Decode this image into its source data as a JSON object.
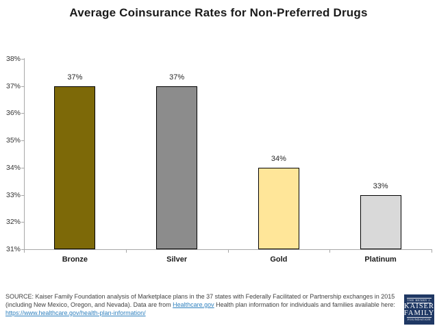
{
  "title": "Average Coinsurance Rates for Non-Preferred Drugs",
  "chart_data": {
    "type": "bar",
    "categories": [
      "Bronze",
      "Silver",
      "Gold",
      "Platinum"
    ],
    "values": [
      37,
      37,
      34,
      33
    ],
    "value_labels": [
      "37%",
      "37%",
      "34%",
      "33%"
    ],
    "title": "Average Coinsurance Rates for Non-Preferred Drugs",
    "xlabel": "",
    "ylabel": "",
    "ylim": [
      31,
      38
    ],
    "ytick_step": 1,
    "ytick_suffix": "%",
    "grid": false,
    "legend": "none",
    "bar_colors": [
      "#7d6908",
      "#8c8c8c",
      "#ffe699",
      "#d9d9d9"
    ],
    "bar_border_color": "#000000",
    "axis_color": "#a6a6a6"
  },
  "source": {
    "line1": "SOURCE: Kaiser Family Foundation analysis of Marketplace plans in the 37 states with Federally Facilitated or Partnership exchanges in 2015",
    "line2_pre": "(including New Mexico, Oregon, and Nevada). Data are from ",
    "link1": "Healthcare.gov",
    "line2_post": " Health plan information for individuals and families available here:",
    "link2": "https://www.healthcare.gov/health-plan-information/",
    "link_color": "#2e80be"
  },
  "logo": {
    "top": "THE HENRY J.",
    "name1": "KAISER",
    "name2": "FAMILY",
    "bottom": "FOUNDATION",
    "bg_color": "#1f3864"
  }
}
